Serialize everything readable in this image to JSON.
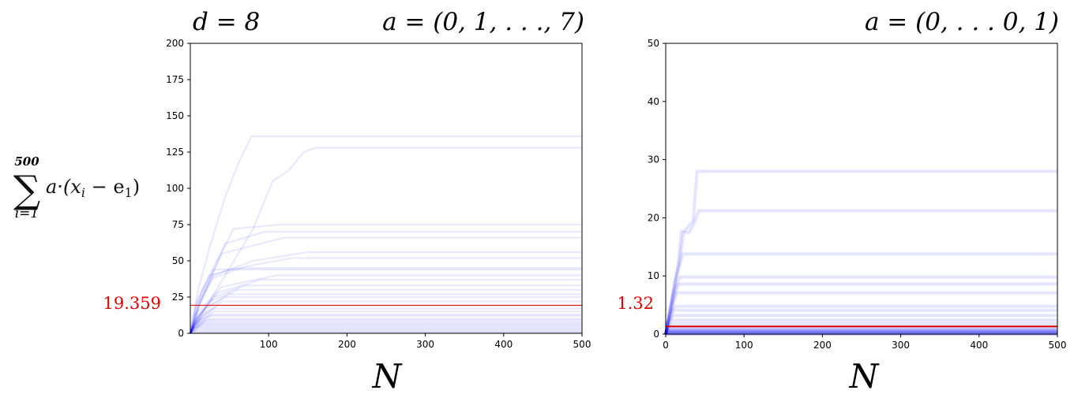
{
  "y_axis_label": {
    "sum_symbol": "∑",
    "upper": "500",
    "lower": "i=1",
    "body": "a·(x",
    "sub_i": "i",
    "minus": " − e",
    "sub_1": "1",
    "close": ")"
  },
  "colors": {
    "series": "#0000ff",
    "reference": "#e00000",
    "axes": "#000000"
  },
  "chart_data": [
    {
      "type": "line",
      "title_left": "d = 8",
      "title_right": "a = (0, 1, . . ., 7)",
      "xlabel": "N",
      "xlim": [
        0,
        500
      ],
      "ylim": [
        0,
        200
      ],
      "xticks": [
        100,
        200,
        300,
        400,
        500
      ],
      "yticks": [
        0,
        25,
        50,
        75,
        100,
        125,
        150,
        175,
        200
      ],
      "reference_value": "19.359",
      "grid": false,
      "series_opacity": 0.09,
      "series": [
        {
          "x": [
            0,
            10,
            25,
            45,
            62,
            78,
            500
          ],
          "y": [
            0,
            30,
            60,
            95,
            118,
            136,
            136
          ]
        },
        {
          "x": [
            0,
            20,
            50,
            80,
            105,
            125,
            145,
            160,
            500
          ],
          "y": [
            0,
            18,
            45,
            72,
            105,
            112,
            125,
            128,
            128
          ]
        },
        {
          "x": [
            0,
            15,
            35,
            55,
            115,
            500
          ],
          "y": [
            0,
            25,
            50,
            72,
            75,
            75
          ]
        },
        {
          "x": [
            0,
            15,
            45,
            95,
            500
          ],
          "y": [
            0,
            30,
            62,
            70,
            70
          ]
        },
        {
          "x": [
            0,
            12,
            40,
            120,
            500
          ],
          "y": [
            0,
            20,
            55,
            66,
            66
          ]
        },
        {
          "x": [
            0,
            10,
            30,
            80,
            150,
            500
          ],
          "y": [
            0,
            18,
            40,
            50,
            56,
            56
          ]
        },
        {
          "x": [
            0,
            10,
            28,
            70,
            130,
            500
          ],
          "y": [
            0,
            20,
            38,
            46,
            52,
            52
          ]
        },
        {
          "x": [
            0,
            8,
            25,
            60,
            500
          ],
          "y": [
            0,
            22,
            40,
            45,
            45
          ]
        },
        {
          "x": [
            0,
            8,
            30,
            500
          ],
          "y": [
            0,
            20,
            44,
            44
          ]
        },
        {
          "x": [
            0,
            10,
            40,
            110,
            500
          ],
          "y": [
            0,
            15,
            32,
            40,
            40
          ]
        },
        {
          "x": [
            0,
            10,
            35,
            90,
            500
          ],
          "y": [
            0,
            12,
            28,
            37,
            37
          ]
        },
        {
          "x": [
            0,
            8,
            30,
            70,
            500
          ],
          "y": [
            0,
            10,
            25,
            33,
            33
          ]
        },
        {
          "x": [
            0,
            8,
            25,
            60,
            500
          ],
          "y": [
            0,
            10,
            22,
            30,
            30
          ]
        },
        {
          "x": [
            0,
            6,
            20,
            50,
            500
          ],
          "y": [
            0,
            8,
            18,
            27,
            27
          ]
        },
        {
          "x": [
            0,
            6,
            20,
            45,
            500
          ],
          "y": [
            0,
            8,
            17,
            25,
            25
          ]
        },
        {
          "x": [
            0,
            6,
            18,
            40,
            500
          ],
          "y": [
            0,
            7,
            14,
            22,
            22
          ]
        },
        {
          "x": [
            0,
            5,
            15,
            35,
            500
          ],
          "y": [
            0,
            6,
            12,
            19,
            19
          ]
        },
        {
          "x": [
            0,
            5,
            15,
            30,
            500
          ],
          "y": [
            0,
            6,
            11,
            17,
            17
          ]
        },
        {
          "x": [
            0,
            5,
            14,
            30,
            500
          ],
          "y": [
            0,
            5,
            10,
            15,
            15
          ]
        },
        {
          "x": [
            0,
            4,
            12,
            28,
            500
          ],
          "y": [
            0,
            5,
            9,
            13,
            13
          ]
        },
        {
          "x": [
            0,
            4,
            12,
            25,
            500
          ],
          "y": [
            0,
            4,
            8,
            12,
            12
          ]
        },
        {
          "x": [
            0,
            4,
            10,
            22,
            500
          ],
          "y": [
            0,
            4,
            7,
            10,
            10
          ]
        },
        {
          "x": [
            0,
            3,
            10,
            20,
            500
          ],
          "y": [
            0,
            3,
            6,
            9,
            9
          ]
        },
        {
          "x": [
            0,
            3,
            8,
            18,
            500
          ],
          "y": [
            0,
            3,
            5,
            8,
            8
          ]
        },
        {
          "x": [
            0,
            3,
            8,
            16,
            500
          ],
          "y": [
            0,
            2,
            4,
            7,
            7
          ]
        },
        {
          "x": [
            0,
            2,
            6,
            14,
            500
          ],
          "y": [
            0,
            2,
            4,
            6,
            6
          ]
        },
        {
          "x": [
            0,
            2,
            6,
            12,
            500
          ],
          "y": [
            0,
            2,
            3,
            5,
            5
          ]
        },
        {
          "x": [
            0,
            2,
            5,
            10,
            500
          ],
          "y": [
            0,
            1,
            2,
            4,
            4
          ]
        },
        {
          "x": [
            0,
            2,
            5,
            10,
            500
          ],
          "y": [
            0,
            1,
            2,
            3,
            3
          ]
        },
        {
          "x": [
            0,
            1,
            4,
            8,
            500
          ],
          "y": [
            0,
            1,
            1.5,
            2,
            2
          ]
        },
        {
          "x": [
            0,
            1,
            4,
            8,
            500
          ],
          "y": [
            0,
            0.5,
            1,
            1,
            1
          ]
        },
        {
          "x": [
            0,
            1,
            3,
            500
          ],
          "y": [
            0,
            0.3,
            0.5,
            0.5
          ]
        }
      ]
    },
    {
      "type": "line",
      "title_left": "",
      "title_right": "a = (0, . . . 0, 1)",
      "xlabel": "N",
      "xlim": [
        0,
        500
      ],
      "ylim": [
        0,
        50
      ],
      "xticks": [
        0,
        100,
        200,
        300,
        400,
        500
      ],
      "yticks": [
        0,
        10,
        20,
        30,
        40,
        50
      ],
      "reference_value": "1.32",
      "grid": false,
      "series_opacity": 0.1,
      "series": [
        {
          "x": [
            0,
            8,
            16,
            20,
            24,
            35,
            40,
            500
          ],
          "y": [
            0,
            6,
            12,
            17.7,
            17.7,
            19.5,
            28,
            28
          ]
        },
        {
          "x": [
            0,
            6,
            12,
            18,
            23,
            30,
            36,
            42,
            500
          ],
          "y": [
            0,
            4,
            9,
            13,
            17.5,
            17.5,
            19,
            21.2,
            21.2
          ]
        },
        {
          "x": [
            0,
            5,
            12,
            22,
            500
          ],
          "y": [
            0,
            4,
            9,
            13.8,
            13.8
          ]
        },
        {
          "x": [
            0,
            4,
            10,
            18,
            500
          ],
          "y": [
            0,
            3,
            7,
            9.8,
            9.8
          ]
        },
        {
          "x": [
            0,
            4,
            10,
            16,
            500
          ],
          "y": [
            0,
            3,
            6,
            8.6,
            8.6
          ]
        },
        {
          "x": [
            0,
            3,
            9,
            14,
            500
          ],
          "y": [
            0,
            2,
            5,
            7.1,
            7.1
          ]
        },
        {
          "x": [
            0,
            3,
            8,
            12,
            500
          ],
          "y": [
            0,
            2,
            4,
            4.8,
            4.8
          ]
        },
        {
          "x": [
            0,
            3,
            7,
            10,
            500
          ],
          "y": [
            0,
            2,
            3,
            4.1,
            4.1
          ]
        },
        {
          "x": [
            0,
            2,
            6,
            10,
            500
          ],
          "y": [
            0,
            1.5,
            2.5,
            3.2,
            3.2
          ]
        },
        {
          "x": [
            0,
            2,
            5,
            8,
            500
          ],
          "y": [
            0,
            1,
            2,
            2.4,
            2.4
          ]
        },
        {
          "x": [
            0,
            2,
            5,
            8,
            500
          ],
          "y": [
            0,
            1,
            1.5,
            1.8,
            1.8
          ]
        },
        {
          "x": [
            0,
            2,
            4,
            500
          ],
          "y": [
            0,
            0.8,
            1.2,
            1.2
          ]
        },
        {
          "x": [
            0,
            1,
            3,
            500
          ],
          "y": [
            0,
            0.5,
            0.9,
            0.9
          ]
        },
        {
          "x": [
            0,
            1,
            3,
            500
          ],
          "y": [
            0,
            0.4,
            0.6,
            0.6
          ]
        },
        {
          "x": [
            0,
            1,
            2,
            500
          ],
          "y": [
            0,
            0.2,
            0.35,
            0.35
          ]
        },
        {
          "x": [
            0,
            1,
            2,
            500
          ],
          "y": [
            0,
            0.1,
            0.15,
            0.15
          ]
        },
        {
          "x": [
            0,
            500
          ],
          "y": [
            0.05,
            0.05
          ]
        },
        {
          "x": [
            0,
            500
          ],
          "y": [
            0.1,
            0.1
          ]
        },
        {
          "x": [
            0,
            500
          ],
          "y": [
            0.2,
            0.2
          ]
        },
        {
          "x": [
            0,
            500
          ],
          "y": [
            0.3,
            0.3
          ]
        },
        {
          "x": [
            0,
            500
          ],
          "y": [
            0.45,
            0.45
          ]
        },
        {
          "x": [
            0,
            500
          ],
          "y": [
            0.6,
            0.6
          ]
        },
        {
          "x": [
            0,
            500
          ],
          "y": [
            0.75,
            0.75
          ]
        },
        {
          "x": [
            0,
            500
          ],
          "y": [
            0.0,
            0.0
          ]
        }
      ]
    }
  ]
}
